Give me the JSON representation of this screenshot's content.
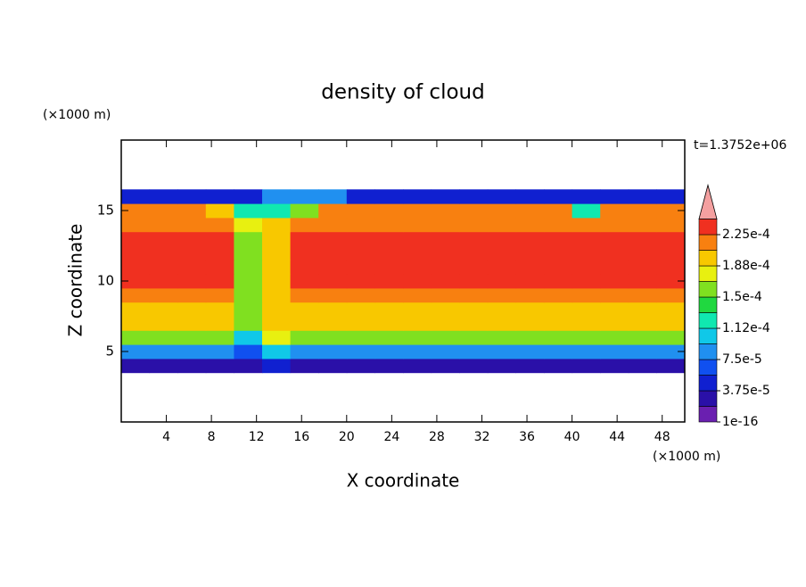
{
  "chart_data": {
    "type": "contour",
    "title": "density of cloud",
    "xlabel": "X coordinate",
    "ylabel": "Z coordinate",
    "xunit": "(×1000 m)",
    "yunit": "(×1000 m)",
    "annotation": "t=1.3752e+06",
    "xlim": [
      0,
      50
    ],
    "ylim": [
      0,
      20
    ],
    "xticks": [
      4,
      8,
      12,
      16,
      20,
      24,
      28,
      32,
      36,
      40,
      44,
      48
    ],
    "yticks": [
      5,
      10,
      15
    ],
    "x": [
      1.25,
      3.75,
      6.25,
      8.75,
      11.25,
      13.75,
      16.25,
      18.75,
      21.25,
      23.75,
      26.25,
      28.75,
      31.25,
      33.75,
      36.25,
      38.75,
      41.25,
      43.75,
      46.25,
      48.75
    ],
    "y": [
      4,
      5,
      6,
      7,
      8,
      9,
      10,
      11,
      12,
      13,
      14,
      15,
      16
    ],
    "z": [
      [
        3e-05,
        3e-05,
        3e-05,
        3e-05,
        2e-05,
        4e-05,
        3e-05,
        3e-05,
        3e-05,
        3e-05,
        3e-05,
        3e-05,
        3e-05,
        3e-05,
        3e-05,
        3e-05,
        3e-05,
        3e-05,
        3e-05,
        3e-05
      ],
      [
        9e-05,
        9e-05,
        9e-05,
        9e-05,
        6e-05,
        0.0001,
        9e-05,
        9e-05,
        9e-05,
        9e-05,
        9e-05,
        9e-05,
        9e-05,
        9e-05,
        9e-05,
        9e-05,
        9e-05,
        9e-05,
        9e-05,
        9e-05
      ],
      [
        0.00016,
        0.00016,
        0.00016,
        0.00016,
        0.00011,
        0.00017,
        0.00016,
        0.00016,
        0.00016,
        0.00016,
        0.00016,
        0.00016,
        0.00016,
        0.00016,
        0.00016,
        0.00016,
        0.00016,
        0.00016,
        0.00016,
        0.00016
      ],
      [
        0.00019,
        0.00019,
        0.00019,
        0.00019,
        0.00015,
        0.0002,
        0.00019,
        0.00019,
        0.00019,
        0.00019,
        0.00019,
        0.00019,
        0.00019,
        0.00019,
        0.00019,
        0.00019,
        0.00019,
        0.00019,
        0.00019,
        0.00019
      ],
      [
        0.0002,
        0.0002,
        0.0002,
        0.0002,
        0.00015,
        0.0002,
        0.0002,
        0.0002,
        0.0002,
        0.0002,
        0.0002,
        0.0002,
        0.0002,
        0.0002,
        0.0002,
        0.0002,
        0.0002,
        0.0002,
        0.0002,
        0.0002
      ],
      [
        0.00022,
        0.00022,
        0.00022,
        0.00022,
        0.00015,
        0.0002,
        0.00022,
        0.00022,
        0.00022,
        0.00022,
        0.00022,
        0.00022,
        0.00022,
        0.00022,
        0.00022,
        0.00022,
        0.00022,
        0.00022,
        0.00022,
        0.00022
      ],
      [
        0.00023,
        0.00023,
        0.00023,
        0.00023,
        0.00015,
        0.0002,
        0.00023,
        0.00023,
        0.00023,
        0.00023,
        0.00023,
        0.00023,
        0.00023,
        0.00023,
        0.00023,
        0.00023,
        0.00023,
        0.00023,
        0.00023,
        0.00023
      ],
      [
        0.00023,
        0.00023,
        0.00023,
        0.00023,
        0.00015,
        0.0002,
        0.00023,
        0.00023,
        0.00023,
        0.00023,
        0.00023,
        0.00023,
        0.00023,
        0.00023,
        0.00023,
        0.00023,
        0.00023,
        0.00023,
        0.00023,
        0.00023
      ],
      [
        0.00023,
        0.00023,
        0.00023,
        0.00023,
        0.00015,
        0.0002,
        0.00023,
        0.00023,
        0.00023,
        0.00023,
        0.00023,
        0.00023,
        0.00023,
        0.00023,
        0.00023,
        0.00023,
        0.00023,
        0.00023,
        0.00023,
        0.00023
      ],
      [
        0.00023,
        0.00023,
        0.00023,
        0.00023,
        0.00015,
        0.0002,
        0.00023,
        0.00023,
        0.00023,
        0.00023,
        0.00023,
        0.00023,
        0.00023,
        0.00023,
        0.00023,
        0.00023,
        0.00023,
        0.00023,
        0.00023,
        0.00023
      ],
      [
        0.00022,
        0.00022,
        0.00022,
        0.00022,
        0.00017,
        0.0002,
        0.00022,
        0.00022,
        0.00022,
        0.00022,
        0.00022,
        0.00022,
        0.00022,
        0.00022,
        0.00022,
        0.00022,
        0.00022,
        0.00022,
        0.00022,
        0.00022
      ],
      [
        0.00021,
        0.00021,
        0.00021,
        0.00019,
        0.00012,
        0.00012,
        0.00015,
        0.00021,
        0.00021,
        0.00021,
        0.00021,
        0.00021,
        0.00021,
        0.00021,
        0.00021,
        0.00021,
        0.00013,
        0.00021,
        0.00021,
        0.00021
      ],
      [
        5e-05,
        5e-05,
        5e-05,
        5e-05,
        5e-05,
        9e-05,
        9e-05,
        8e-05,
        5e-05,
        5e-05,
        5e-05,
        5e-05,
        5e-05,
        5e-05,
        5e-05,
        5e-05,
        4e-05,
        5e-05,
        5e-05,
        5e-05
      ]
    ],
    "levels": [
      1e-16,
      1.875e-05,
      3.75e-05,
      5.625e-05,
      7.5e-05,
      9.375e-05,
      0.0001125,
      0.00013125,
      0.00015,
      0.00016875,
      0.0001875,
      0.00020625,
      0.000225,
      0.00024375
    ],
    "colors": [
      "#6a1fb0",
      "#2a10a8",
      "#1020d0",
      "#1050f0",
      "#2090f0",
      "#10c8e8",
      "#10e8b0",
      "#20d840",
      "#80e020",
      "#e8f010",
      "#f8c800",
      "#f88010",
      "#f03020"
    ],
    "extend_color": "#f4a0a0",
    "cbar_ticks": [
      {
        "value": 1e-16,
        "label": "1e-16"
      },
      {
        "value": 3.75e-05,
        "label": "3.75e-5"
      },
      {
        "value": 7.5e-05,
        "label": "7.5e-5"
      },
      {
        "value": 0.0001125,
        "label": "1.12e-4"
      },
      {
        "value": 0.00015,
        "label": "1.5e-4"
      },
      {
        "value": 0.0001875,
        "label": "1.88e-4"
      },
      {
        "value": 0.000225,
        "label": "2.25e-4"
      }
    ]
  }
}
